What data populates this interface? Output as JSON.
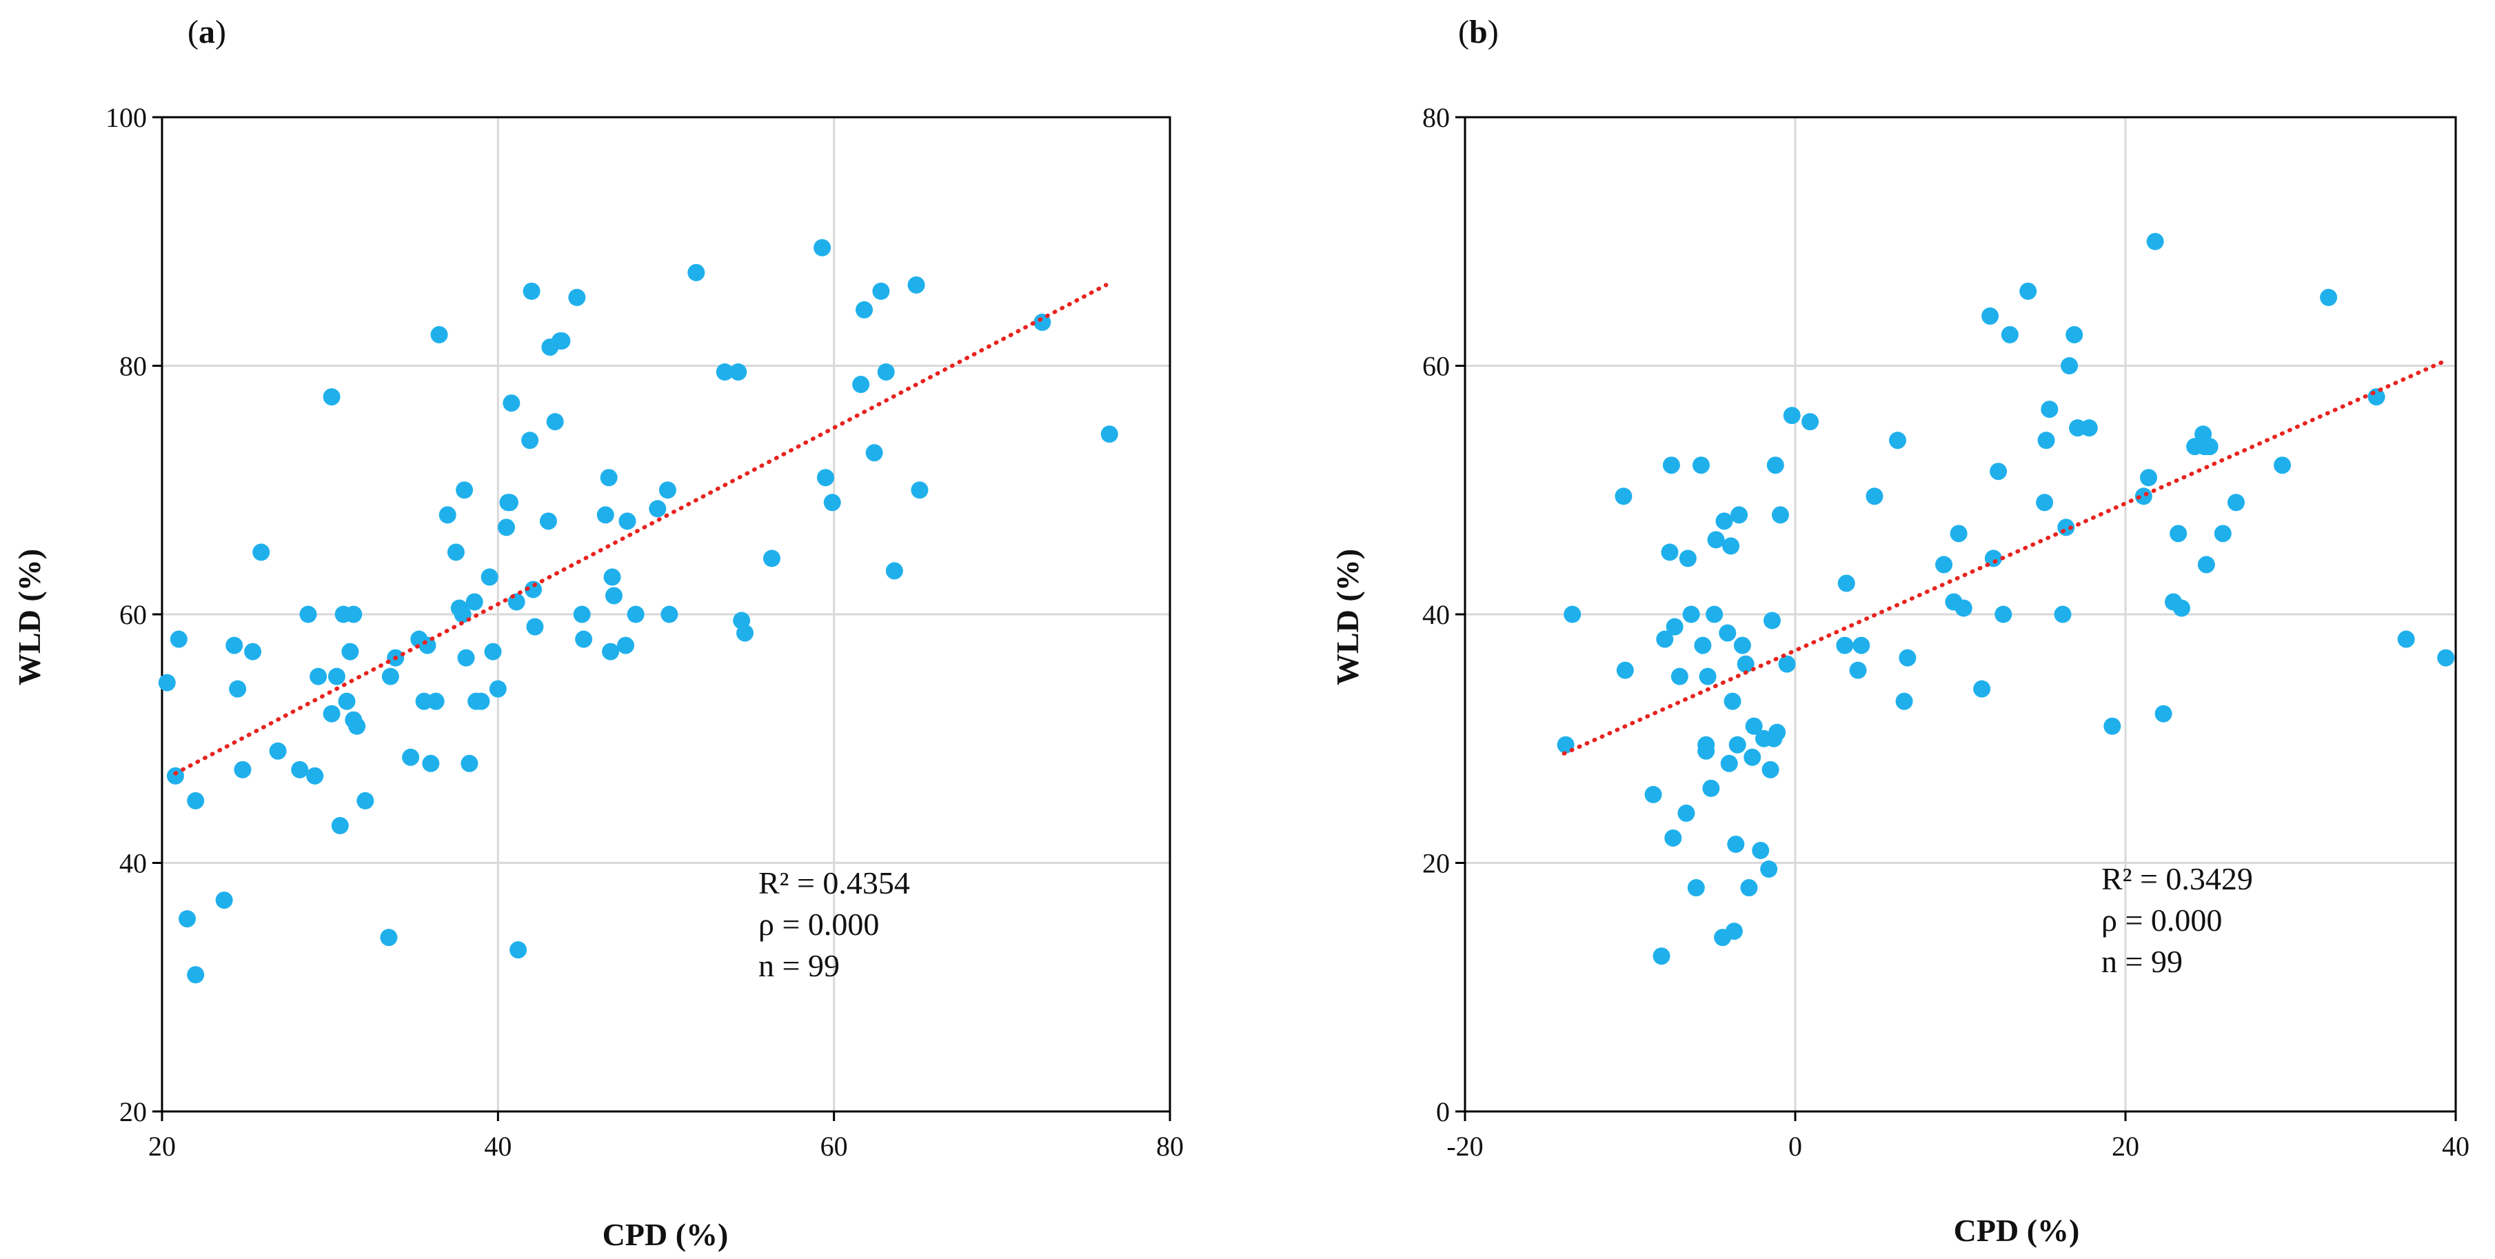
{
  "colors": {
    "point": "#1fb0ec",
    "trend": "#e8231f",
    "grid": "#d9d9d9",
    "axis": "#000000"
  },
  "chart_data": [
    {
      "type": "scatter",
      "panel_label": "a",
      "xlabel": "CPD (%)",
      "ylabel": "WLD (%)",
      "xlim": [
        20,
        80
      ],
      "ylim": [
        20,
        100
      ],
      "xticks": [
        20,
        40,
        60,
        80
      ],
      "yticks": [
        20,
        40,
        60,
        80,
        100
      ],
      "x_tick_labels": [
        "20",
        "40",
        "60",
        "80"
      ],
      "y_tick_labels": [
        "20",
        "40",
        "60",
        "80",
        "100"
      ],
      "grid": true,
      "trendline": {
        "style": "dotted",
        "x": [
          20.8,
          76.2
        ],
        "y": [
          47.2,
          86.5
        ]
      },
      "annotations": [
        "R² = 0.4354",
        "ρ =  0.000",
        "n = 99"
      ],
      "series": [
        {
          "name": "observations",
          "x": [
            20.3,
            20.8,
            21.0,
            21.5,
            22.0,
            22.0,
            23.7,
            24.3,
            24.5,
            24.8,
            25.4,
            25.9,
            26.9,
            28.2,
            28.7,
            29.1,
            29.3,
            30.1,
            30.1,
            30.4,
            30.6,
            30.8,
            31.0,
            31.2,
            31.4,
            31.4,
            31.6,
            32.1,
            33.5,
            33.6,
            33.9,
            34.8,
            35.3,
            35.6,
            35.8,
            36.0,
            36.3,
            36.5,
            37.0,
            37.5,
            37.9,
            38.0,
            38.1,
            38.3,
            38.6,
            38.7,
            39.0,
            39.5,
            39.7,
            40.0,
            40.5,
            40.7,
            40.8,
            41.1,
            41.2,
            41.9,
            42.0,
            42.1,
            42.2,
            43.0,
            43.1,
            43.4,
            43.7,
            44.7,
            45.0,
            45.1,
            46.4,
            46.6,
            46.7,
            46.8,
            46.9,
            47.6,
            47.7,
            48.2,
            49.5,
            50.1,
            50.2,
            51.8,
            53.5,
            54.3,
            54.5,
            54.7,
            56.3,
            59.3,
            59.5,
            59.9,
            61.6,
            61.8,
            62.4,
            62.8,
            63.1,
            63.6,
            64.9,
            65.1,
            72.4,
            76.4,
            40.6,
            43.8,
            37.7
          ],
          "y": [
            54.5,
            47.0,
            58.0,
            35.5,
            45.0,
            31.0,
            37.0,
            57.5,
            54.0,
            47.5,
            57.0,
            65.0,
            49.0,
            47.5,
            60.0,
            47.0,
            55.0,
            77.5,
            52.0,
            55.0,
            43.0,
            60.0,
            53.0,
            57.0,
            51.5,
            60.0,
            51.0,
            45.0,
            34.0,
            55.0,
            56.5,
            48.5,
            58.0,
            53.0,
            57.5,
            48.0,
            53.0,
            82.5,
            68.0,
            65.0,
            60.0,
            70.0,
            56.5,
            48.0,
            61.0,
            53.0,
            53.0,
            63.0,
            57.0,
            54.0,
            67.0,
            69.0,
            77.0,
            61.0,
            33.0,
            74.0,
            86.0,
            62.0,
            59.0,
            67.5,
            81.5,
            75.5,
            82.0,
            85.5,
            60.0,
            58.0,
            68.0,
            71.0,
            57.0,
            63.0,
            61.5,
            57.5,
            67.5,
            60.0,
            68.5,
            70.0,
            60.0,
            87.5,
            79.5,
            79.5,
            59.5,
            58.5,
            64.5,
            89.5,
            71.0,
            69.0,
            78.5,
            84.5,
            73.0,
            86.0,
            79.5,
            63.5,
            86.5,
            70.0,
            83.5,
            74.5,
            69.0,
            82.0,
            60.5
          ]
        }
      ]
    },
    {
      "type": "scatter",
      "panel_label": "b",
      "xlabel": "CPD (%)",
      "ylabel": "WLD (%)",
      "xlim": [
        -20,
        40
      ],
      "ylim": [
        0,
        80
      ],
      "xticks": [
        -20,
        0,
        20,
        40
      ],
      "yticks": [
        0,
        20,
        40,
        60,
        80
      ],
      "x_tick_labels": [
        "-20",
        "0",
        "20",
        "40"
      ],
      "y_tick_labels": [
        "0",
        "20",
        "40",
        "60",
        "80"
      ],
      "grid": true,
      "trendline": {
        "style": "dotted",
        "x": [
          -14.0,
          39.2
        ],
        "y": [
          28.8,
          60.3
        ]
      },
      "annotations": [
        "R² = 0.3429",
        "ρ = 0.000",
        "n = 99"
      ],
      "series": [
        {
          "name": "observations",
          "x": [
            -13.9,
            -13.5,
            -10.4,
            -10.3,
            -8.6,
            -8.1,
            -7.9,
            -7.6,
            -7.5,
            -7.4,
            -7.3,
            -7.0,
            -6.6,
            -6.5,
            -6.3,
            -6.0,
            -5.7,
            -5.6,
            -5.4,
            -5.4,
            -5.3,
            -5.1,
            -4.9,
            -4.4,
            -4.3,
            -4.1,
            -4.0,
            -3.9,
            -3.8,
            -3.7,
            -3.6,
            -3.5,
            -3.4,
            -3.2,
            -3.0,
            -2.8,
            -2.6,
            -2.5,
            -2.1,
            -1.9,
            -1.6,
            -1.5,
            -1.4,
            -1.3,
            -1.2,
            -1.1,
            -0.9,
            -0.5,
            -0.2,
            0.9,
            3.0,
            3.1,
            3.8,
            4.0,
            4.8,
            6.2,
            6.6,
            6.8,
            9.0,
            9.6,
            9.9,
            10.2,
            11.3,
            11.8,
            12.0,
            12.3,
            12.6,
            13.0,
            14.1,
            15.1,
            15.2,
            15.4,
            16.2,
            16.4,
            16.6,
            16.9,
            17.1,
            17.8,
            19.2,
            21.1,
            21.4,
            21.8,
            22.3,
            22.9,
            23.2,
            23.4,
            24.2,
            24.7,
            24.8,
            24.9,
            25.1,
            25.9,
            26.7,
            29.5,
            32.3,
            35.2,
            37.0,
            39.4,
            -4.8
          ],
          "y": [
            29.5,
            40.0,
            49.5,
            35.5,
            25.5,
            12.5,
            38.0,
            45.0,
            52.0,
            22.0,
            39.0,
            35.0,
            24.0,
            44.5,
            40.0,
            18.0,
            52.0,
            37.5,
            29.0,
            29.5,
            35.0,
            26.0,
            40.0,
            14.0,
            47.5,
            38.5,
            28.0,
            45.5,
            33.0,
            14.5,
            21.5,
            29.5,
            48.0,
            37.5,
            36.0,
            18.0,
            28.5,
            31.0,
            21.0,
            30.0,
            19.5,
            27.5,
            39.5,
            30.0,
            52.0,
            30.5,
            48.0,
            36.0,
            56.0,
            55.5,
            37.5,
            42.5,
            35.5,
            37.5,
            49.5,
            54.0,
            33.0,
            36.5,
            44.0,
            41.0,
            46.5,
            40.5,
            34.0,
            64.0,
            44.5,
            51.5,
            40.0,
            62.5,
            66.0,
            49.0,
            54.0,
            56.5,
            40.0,
            47.0,
            60.0,
            62.5,
            55.0,
            55.0,
            31.0,
            49.5,
            51.0,
            70.0,
            32.0,
            41.0,
            46.5,
            40.5,
            53.5,
            54.5,
            53.5,
            44.0,
            53.5,
            46.5,
            49.0,
            52.0,
            65.5,
            57.5,
            38.0,
            36.5,
            46.0
          ]
        }
      ]
    }
  ]
}
